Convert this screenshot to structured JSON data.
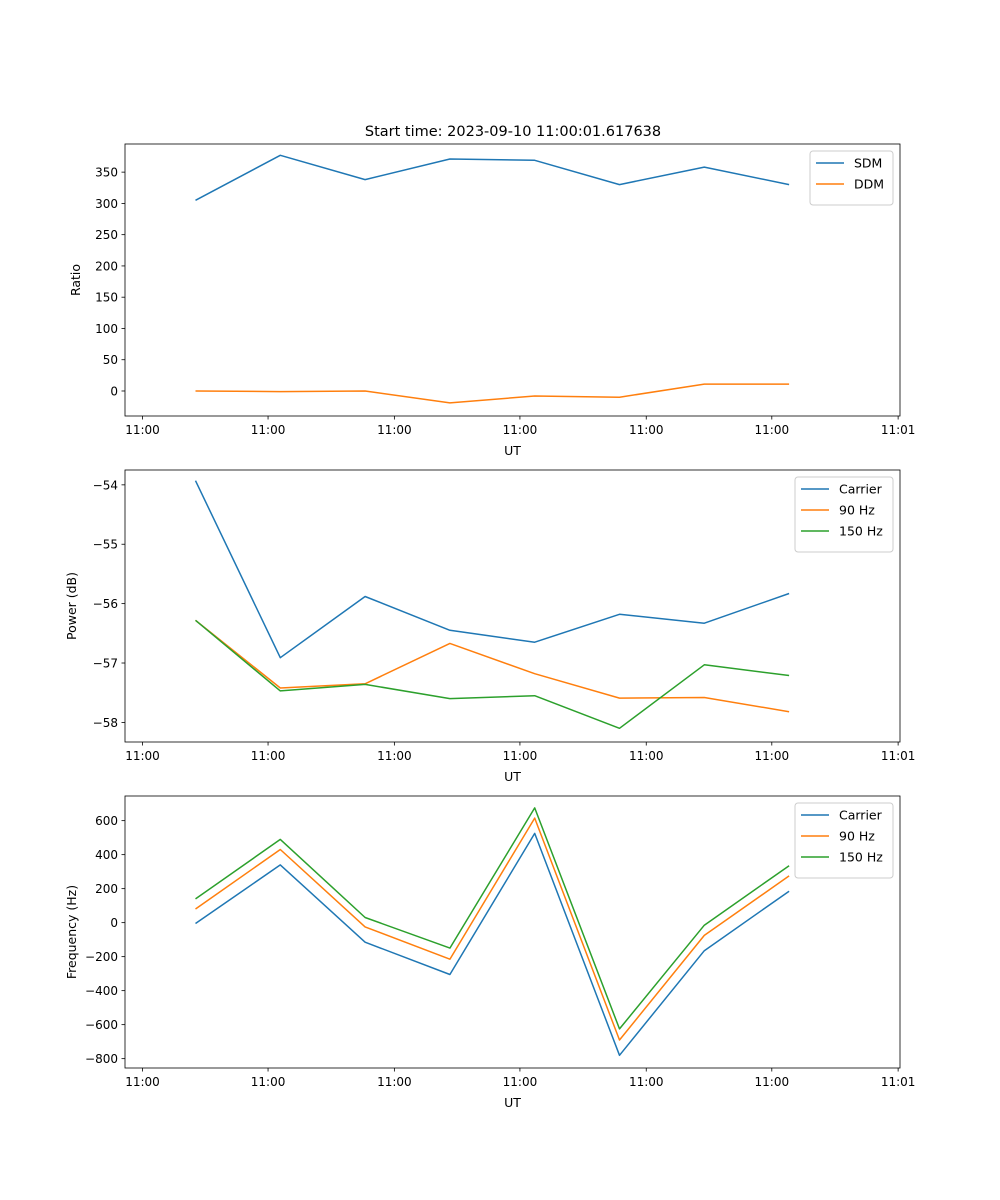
{
  "title": "Start time: 2023-09-10 11:00:01.617638",
  "x_tick_labels": [
    "11:00",
    "11:00",
    "11:00",
    "11:00",
    "11:00",
    "11:00",
    "11:01"
  ],
  "colors": {
    "blue": "#1f77b4",
    "orange": "#ff7f0e",
    "green": "#2ca02c"
  },
  "chart_data": [
    {
      "type": "line",
      "xlabel": "UT",
      "ylabel": "Ratio",
      "x_range": [
        -0.55,
        5.5
      ],
      "ylim": [
        -40,
        395
      ],
      "yticks": [
        0,
        50,
        100,
        150,
        200,
        250,
        300,
        350
      ],
      "ytick_labels": [
        "0",
        "50",
        "100",
        "150",
        "200",
        "250",
        "300",
        "350"
      ],
      "x": [
        0,
        0.662,
        1.324,
        1.986,
        2.648,
        3.31,
        3.972,
        4.634
      ],
      "series": [
        {
          "name": "SDM",
          "color": "#1f77b4",
          "values": [
            305,
            377,
            338,
            371,
            369,
            330,
            358,
            330
          ]
        },
        {
          "name": "DDM",
          "color": "#ff7f0e",
          "values": [
            0,
            -1,
            0,
            -19,
            -8,
            -10,
            11,
            11
          ]
        }
      ]
    },
    {
      "type": "line",
      "xlabel": "UT",
      "ylabel": "Power (dB)",
      "x_range": [
        -0.55,
        5.5
      ],
      "ylim": [
        -58.33,
        -53.75
      ],
      "yticks": [
        -58,
        -57,
        -56,
        -55,
        -54
      ],
      "ytick_labels": [
        "−58",
        "−57",
        "−56",
        "−55",
        "−54"
      ],
      "x": [
        0,
        0.662,
        1.324,
        1.986,
        2.648,
        3.31,
        3.972,
        4.634
      ],
      "series": [
        {
          "name": "Carrier",
          "color": "#1f77b4",
          "values": [
            -53.93,
            -56.91,
            -55.88,
            -56.45,
            -56.65,
            -56.18,
            -56.33,
            -55.83
          ]
        },
        {
          "name": "90 Hz",
          "color": "#ff7f0e",
          "values": [
            -56.28,
            -57.42,
            -57.35,
            -56.67,
            -57.18,
            -57.59,
            -57.58,
            -57.82
          ]
        },
        {
          "name": "150 Hz",
          "color": "#2ca02c",
          "values": [
            -56.28,
            -57.47,
            -57.36,
            -57.6,
            -57.55,
            -58.1,
            -57.03,
            -57.21
          ]
        }
      ]
    },
    {
      "type": "line",
      "xlabel": "UT",
      "ylabel": "Frequency (Hz)",
      "x_range": [
        -0.55,
        5.5
      ],
      "ylim": [
        -855,
        745
      ],
      "yticks": [
        -800,
        -600,
        -400,
        -200,
        0,
        200,
        400,
        600
      ],
      "ytick_labels": [
        "−800",
        "−600",
        "−400",
        "−200",
        "0",
        "200",
        "400",
        "600"
      ],
      "x": [
        0,
        0.662,
        1.324,
        1.986,
        2.648,
        3.31,
        3.972,
        4.634
      ],
      "series": [
        {
          "name": "Carrier",
          "color": "#1f77b4",
          "values": [
            -5,
            340,
            -115,
            -305,
            525,
            -780,
            -165,
            185
          ]
        },
        {
          "name": "90 Hz",
          "color": "#ff7f0e",
          "values": [
            80,
            430,
            -25,
            -215,
            615,
            -690,
            -75,
            275
          ]
        },
        {
          "name": "150 Hz",
          "color": "#2ca02c",
          "values": [
            140,
            490,
            30,
            -150,
            675,
            -625,
            -15,
            335
          ]
        }
      ]
    }
  ]
}
